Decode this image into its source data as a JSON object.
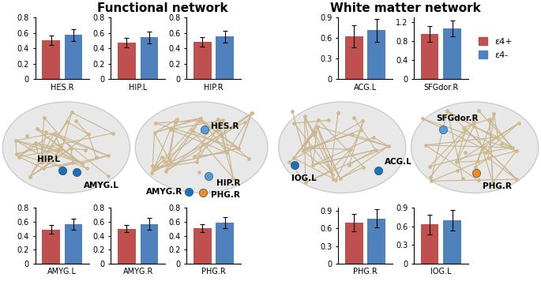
{
  "chart_data": [
    {
      "type": "bar",
      "xlabel": "HES.R",
      "tick_labels": "y",
      "ylim": [
        0,
        0.8
      ],
      "yticks": [
        0,
        0.2,
        0.4,
        0.6,
        0.8
      ],
      "series": [
        {
          "color": "#c0504d",
          "values": [
            0.5
          ],
          "error": [
            0.06
          ]
        },
        {
          "color": "#4f81bd",
          "values": [
            0.57
          ],
          "error": [
            0.08
          ]
        }
      ]
    },
    {
      "type": "bar",
      "xlabel": "HIP.L",
      "tick_labels": "y",
      "ylim": [
        0,
        0.8
      ],
      "yticks": [
        0,
        0.2,
        0.4,
        0.6,
        0.8
      ],
      "series": [
        {
          "color": "#c0504d",
          "values": [
            0.47
          ],
          "error": [
            0.06
          ]
        },
        {
          "color": "#4f81bd",
          "values": [
            0.54
          ],
          "error": [
            0.08
          ]
        }
      ]
    },
    {
      "type": "bar",
      "xlabel": "HIP.R",
      "tick_labels": "y",
      "ylim": [
        0,
        0.8
      ],
      "yticks": [
        0,
        0.2,
        0.4,
        0.6,
        0.8
      ],
      "series": [
        {
          "color": "#c0504d",
          "values": [
            0.48
          ],
          "error": [
            0.06
          ]
        },
        {
          "color": "#4f81bd",
          "values": [
            0.55
          ],
          "error": [
            0.08
          ]
        }
      ]
    },
    {
      "type": "bar",
      "xlabel": "AMYG.L",
      "tick_labels": "y",
      "ylim": [
        0,
        0.8
      ],
      "yticks": [
        0,
        0.2,
        0.4,
        0.6,
        0.8
      ],
      "series": [
        {
          "color": "#c0504d",
          "values": [
            0.49
          ],
          "error": [
            0.06
          ]
        },
        {
          "color": "#4f81bd",
          "values": [
            0.56
          ],
          "error": [
            0.08
          ]
        }
      ]
    },
    {
      "type": "bar",
      "xlabel": "AMYG.R",
      "tick_labels": "y",
      "ylim": [
        0,
        0.8
      ],
      "yticks": [
        0,
        0.2,
        0.4,
        0.6,
        0.8
      ],
      "series": [
        {
          "color": "#c0504d",
          "values": [
            0.5
          ],
          "error": [
            0.05
          ]
        },
        {
          "color": "#4f81bd",
          "values": [
            0.57
          ],
          "error": [
            0.08
          ]
        }
      ]
    },
    {
      "type": "bar",
      "xlabel": "PHG.R",
      "tick_labels": "y",
      "ylim": [
        0,
        0.8
      ],
      "yticks": [
        0,
        0.2,
        0.4,
        0.6,
        0.8
      ],
      "series": [
        {
          "color": "#c0504d",
          "values": [
            0.51
          ],
          "error": [
            0.06
          ]
        },
        {
          "color": "#4f81bd",
          "values": [
            0.59
          ],
          "error": [
            0.08
          ]
        }
      ]
    },
    {
      "type": "bar",
      "xlabel": "ACG.L",
      "tick_labels": "y",
      "ylim": [
        0,
        0.9
      ],
      "yticks": [
        0,
        0.3,
        0.6,
        0.9
      ],
      "series": [
        {
          "color": "#c0504d",
          "values": [
            0.62
          ],
          "error": [
            0.16
          ]
        },
        {
          "color": "#4f81bd",
          "values": [
            0.71
          ],
          "error": [
            0.17
          ]
        }
      ]
    },
    {
      "type": "bar",
      "xlabel": "SFGdor.R",
      "tick_labels": "y",
      "ylim": [
        0,
        1.3
      ],
      "yticks": [
        0,
        0.4,
        0.8,
        1.2
      ],
      "legend": "center left",
      "series": [
        {
          "name": "ε4+",
          "color": "#c0504d",
          "values": [
            0.95
          ],
          "error": [
            0.16
          ]
        },
        {
          "name": "ε4-",
          "color": "#4f81bd",
          "values": [
            1.07
          ],
          "error": [
            0.17
          ]
        }
      ]
    },
    {
      "type": "bar",
      "xlabel": "PHG.R",
      "tick_labels": "y",
      "ylim": [
        0,
        0.95
      ],
      "yticks": [
        0,
        0.3,
        0.6,
        0.9
      ],
      "series": [
        {
          "color": "#c0504d",
          "values": [
            0.7
          ],
          "error": [
            0.15
          ]
        },
        {
          "color": "#4f81bd",
          "values": [
            0.77
          ],
          "error": [
            0.16
          ]
        }
      ]
    },
    {
      "type": "bar",
      "xlabel": "IOG.L",
      "tick_labels": "y",
      "ylim": [
        0,
        0.9
      ],
      "yticks": [
        0,
        0.3,
        0.6,
        0.9
      ],
      "series": [
        {
          "color": "#c0504d",
          "values": [
            0.63
          ],
          "error": [
            0.16
          ]
        },
        {
          "color": "#4f81bd",
          "values": [
            0.7
          ],
          "error": [
            0.17
          ]
        }
      ]
    }
  ],
  "sections": [
    {
      "title": "Functional network"
    },
    {
      "title": "White matter network"
    }
  ],
  "brains": [
    {
      "nodes": [
        {
          "label": "HIP.L",
          "color": "#1f6fb5"
        },
        {
          "label": "AMYG.L",
          "color": "#1f6fb5"
        }
      ]
    },
    {
      "nodes": [
        {
          "label": "HES.R",
          "color": "#5a9bd5"
        },
        {
          "label": "HIP.R",
          "color": "#5a9bd5"
        },
        {
          "label": "AMYG.R",
          "color": "#1f6fb5"
        },
        {
          "label": "PHG.R",
          "color": "#f28a1e"
        }
      ]
    },
    {
      "nodes": [
        {
          "label": "IOG.L",
          "color": "#1f6fb5"
        },
        {
          "label": "ACG.L",
          "color": "#1f6fb5"
        }
      ]
    },
    {
      "nodes": [
        {
          "label": "SFGdor.R",
          "color": "#5a9bd5"
        },
        {
          "label": "PHG.R",
          "color": "#f28a1e"
        }
      ]
    }
  ]
}
